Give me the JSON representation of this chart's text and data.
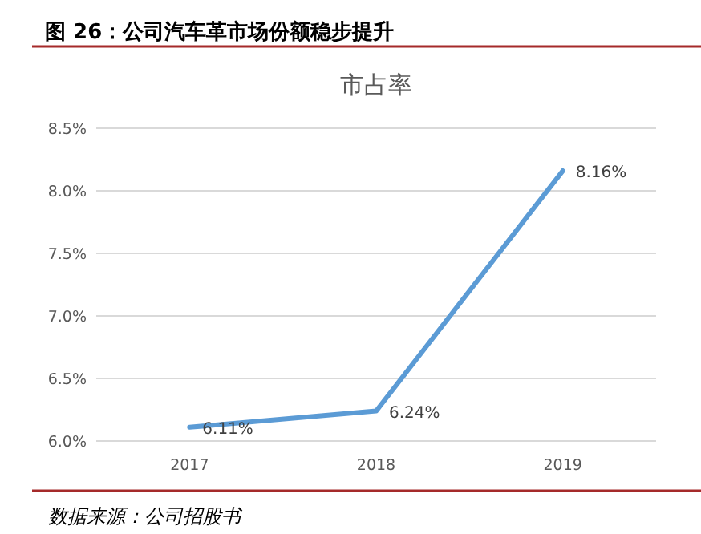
{
  "chart_data": {
    "type": "line",
    "title": "图 26：公司汽车革市场份额稳步提升",
    "subtitle": "市占率",
    "categories": [
      "2017",
      "2018",
      "2019"
    ],
    "series": [
      {
        "color": "#5b9bd5",
        "values": [
          6.11,
          6.24,
          8.16
        ],
        "value_labels": [
          "6.11%",
          "6.24%",
          "8.16%"
        ]
      }
    ],
    "ylim": [
      6.0,
      8.5
    ],
    "yticks": [
      {
        "value": 6.0,
        "label": "6.0%"
      },
      {
        "value": 6.5,
        "label": "6.5%"
      },
      {
        "value": 7.0,
        "label": "7.0%"
      },
      {
        "value": 7.5,
        "label": "7.5%"
      },
      {
        "value": 8.0,
        "label": "8.0%"
      },
      {
        "value": 8.5,
        "label": "8.5%"
      }
    ],
    "grid": "y",
    "marker": "none",
    "line_style": "solid",
    "annotations": [
      "数据来源：公司招股书"
    ]
  }
}
